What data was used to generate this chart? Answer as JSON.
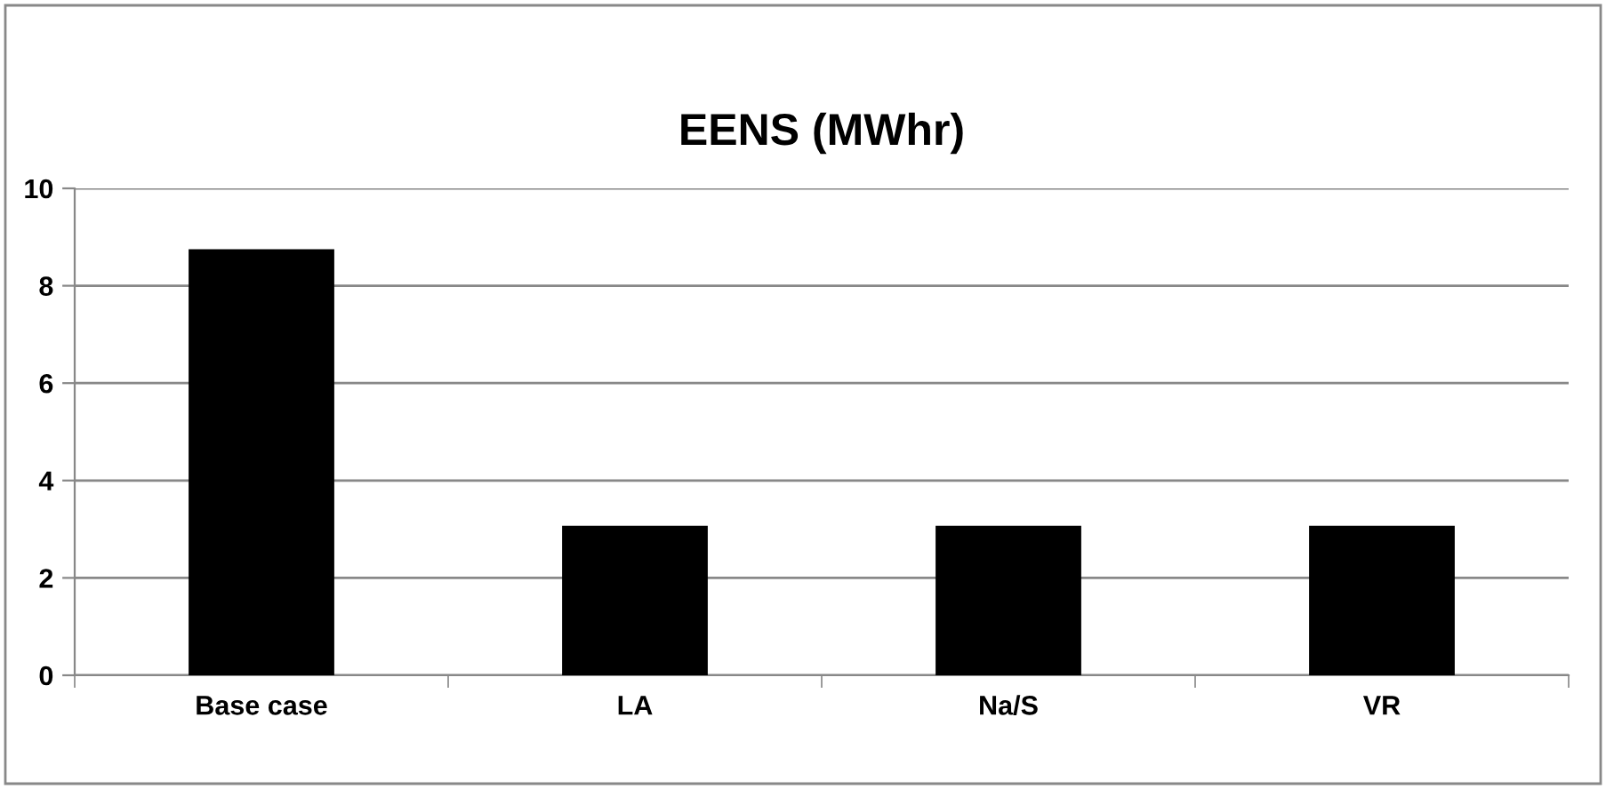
{
  "chart_data": {
    "type": "bar",
    "title": "EENS (MWhr)",
    "categories": [
      "Base case",
      "LA",
      "Na/S",
      "VR"
    ],
    "values": [
      8.75,
      3.07,
      3.07,
      3.07
    ],
    "color": "#000000",
    "ylim": [
      0,
      10
    ],
    "yticks": [
      0,
      2,
      4,
      6,
      8,
      10
    ],
    "grid": "y",
    "legend": false
  }
}
